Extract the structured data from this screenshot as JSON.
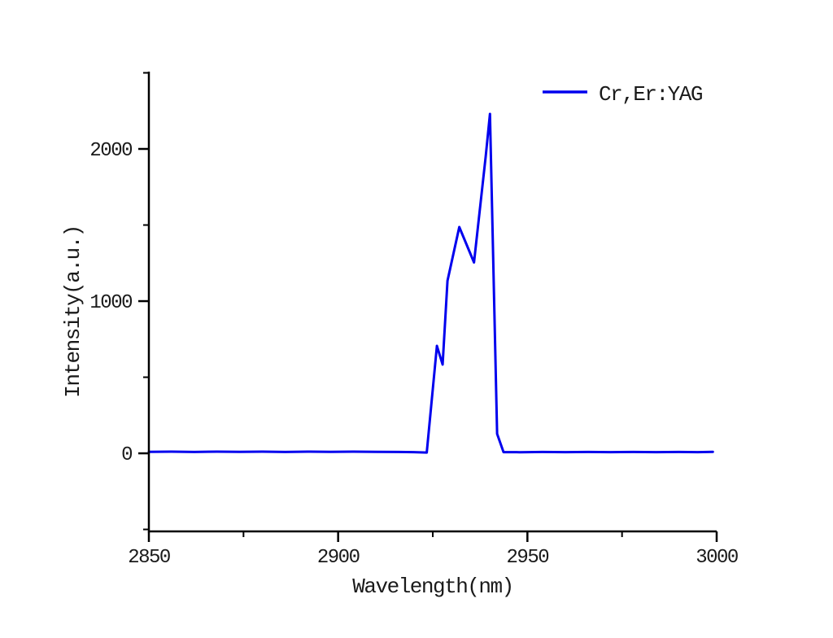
{
  "chart_data": {
    "type": "line",
    "title": "",
    "xlabel": "Wavelength(nm)",
    "ylabel": "Intensity(a.u.)",
    "xlim": [
      2850,
      3000
    ],
    "ylim": [
      -513,
      2508
    ],
    "x_major_ticks": [
      2850,
      2900,
      2950,
      3000
    ],
    "x_minor_ticks": [
      2875,
      2925,
      2975
    ],
    "y_major_ticks": [
      0,
      1000,
      2000
    ],
    "y_minor_ticks": [
      -500,
      500,
      1500,
      2500
    ],
    "grid": false,
    "legend": {
      "position": "upper-right",
      "frame": false,
      "entries": [
        {
          "label": "Cr,Er:YAG",
          "color": "#0000ee"
        }
      ]
    },
    "series": [
      {
        "name": "Cr,Er:YAG",
        "color": "#0000ee",
        "points": [
          [
            2850,
            10
          ],
          [
            2856,
            11
          ],
          [
            2862,
            9
          ],
          [
            2868,
            11
          ],
          [
            2874,
            10
          ],
          [
            2880,
            11
          ],
          [
            2886,
            9
          ],
          [
            2892,
            11
          ],
          [
            2898,
            10
          ],
          [
            2904,
            11
          ],
          [
            2910,
            10
          ],
          [
            2916,
            9
          ],
          [
            2920,
            8
          ],
          [
            2923.4,
            5
          ],
          [
            2926.1,
            706
          ],
          [
            2927.6,
            583
          ],
          [
            2928.9,
            1134
          ],
          [
            2932.0,
            1487
          ],
          [
            2935.9,
            1254
          ],
          [
            2939.0,
            1952
          ],
          [
            2940.1,
            2230
          ],
          [
            2942.0,
            128
          ],
          [
            2943.7,
            8
          ],
          [
            2948,
            7
          ],
          [
            2954,
            9
          ],
          [
            2960,
            8
          ],
          [
            2966,
            9
          ],
          [
            2972,
            8
          ],
          [
            2978,
            9
          ],
          [
            2984,
            8
          ],
          [
            2990,
            9
          ],
          [
            2995,
            8
          ],
          [
            2999,
            10
          ]
        ]
      }
    ]
  },
  "style": {
    "axis_color": "#000000",
    "text_color": "#1a1a1a",
    "background": "#ffffff"
  }
}
